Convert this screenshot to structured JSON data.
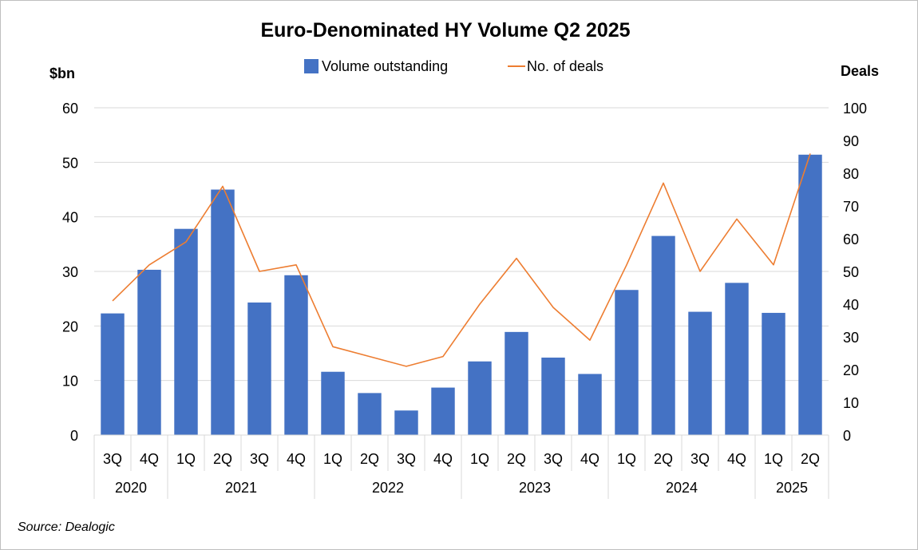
{
  "chart_data": {
    "type": "bar+line",
    "title": "Euro-Denominated HY Volume Q2 2025",
    "source": "Source: Dealogic",
    "y_left_label": "$bn",
    "y_right_label": "Deals",
    "y_left_lim": [
      0,
      60
    ],
    "y_left_ticks": [
      0,
      10,
      20,
      30,
      40,
      50,
      60
    ],
    "y_right_lim": [
      0,
      100
    ],
    "y_right_ticks": [
      0,
      10,
      20,
      30,
      40,
      50,
      60,
      70,
      80,
      90,
      100
    ],
    "grid": true,
    "legend_position": "top-center",
    "quarters": [
      "3Q",
      "4Q",
      "1Q",
      "2Q",
      "3Q",
      "4Q",
      "1Q",
      "2Q",
      "3Q",
      "4Q",
      "1Q",
      "2Q",
      "3Q",
      "4Q",
      "1Q",
      "2Q",
      "3Q",
      "4Q",
      "1Q",
      "2Q"
    ],
    "years": [
      {
        "label": "2020",
        "count": 2
      },
      {
        "label": "2021",
        "count": 4
      },
      {
        "label": "2022",
        "count": 4
      },
      {
        "label": "2023",
        "count": 4
      },
      {
        "label": "2024",
        "count": 4
      },
      {
        "label": "2025",
        "count": 2
      }
    ],
    "series": [
      {
        "name": "Volume outstanding",
        "type": "bar",
        "axis": "left",
        "color": "#4472C4",
        "values": [
          22.3,
          30.3,
          37.8,
          45.0,
          24.3,
          29.3,
          11.6,
          7.7,
          4.5,
          8.7,
          13.5,
          18.9,
          14.2,
          11.2,
          26.6,
          36.5,
          22.6,
          27.9,
          22.4,
          51.4
        ]
      },
      {
        "name": "No. of deals",
        "type": "line",
        "axis": "right",
        "color": "#ED7D31",
        "values": [
          41,
          52,
          59,
          76,
          50,
          52,
          27,
          24,
          21,
          24,
          40,
          54,
          39,
          29,
          52,
          77,
          50,
          66,
          52,
          86
        ]
      }
    ]
  }
}
